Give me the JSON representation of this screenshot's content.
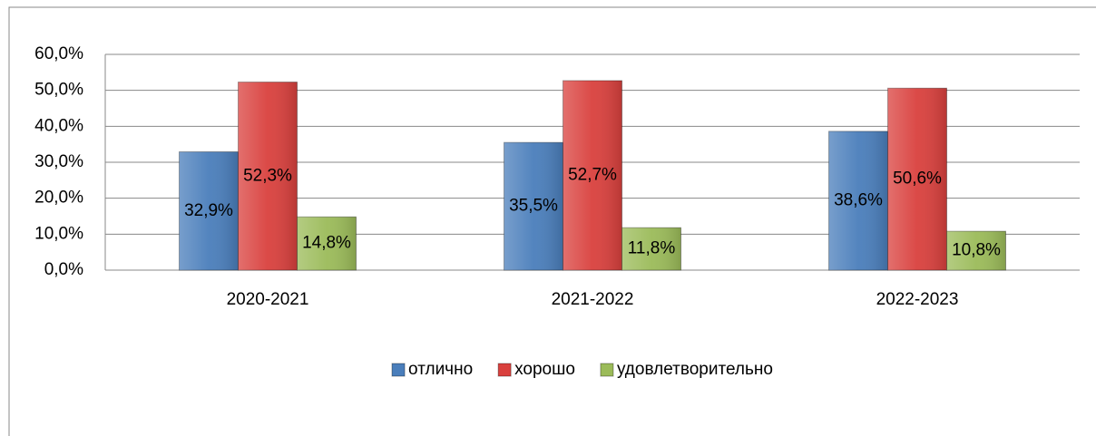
{
  "chart_data": {
    "type": "bar",
    "categories": [
      "2020-2021",
      "2021-2022",
      "2022-2023"
    ],
    "series": [
      {
        "name": "отлично",
        "color": "#4a7ebb",
        "values": [
          32.9,
          35.5,
          38.6
        ],
        "value_labels": [
          "32,9%",
          "35,5%",
          "38,6%"
        ]
      },
      {
        "name": "хорошо",
        "color": "#d9403d",
        "values": [
          52.3,
          52.7,
          50.6
        ],
        "value_labels": [
          "52,3%",
          "52,7%",
          "50,6%"
        ]
      },
      {
        "name": "удовлетворительно",
        "color": "#9bbb59",
        "values": [
          14.8,
          11.8,
          10.8
        ],
        "value_labels": [
          "14,8%",
          "11,8%",
          "10,8%"
        ]
      }
    ],
    "ylim": [
      0,
      60
    ],
    "yticks": [
      {
        "value": 0,
        "label": "0,0%"
      },
      {
        "value": 10,
        "label": "10,0%"
      },
      {
        "value": 20,
        "label": "20,0%"
      },
      {
        "value": 30,
        "label": "30,0%"
      },
      {
        "value": 40,
        "label": "40,0%"
      },
      {
        "value": 50,
        "label": "50,0%"
      },
      {
        "value": 60,
        "label": "60,0%"
      }
    ],
    "grid": true,
    "legend": "bottom"
  }
}
